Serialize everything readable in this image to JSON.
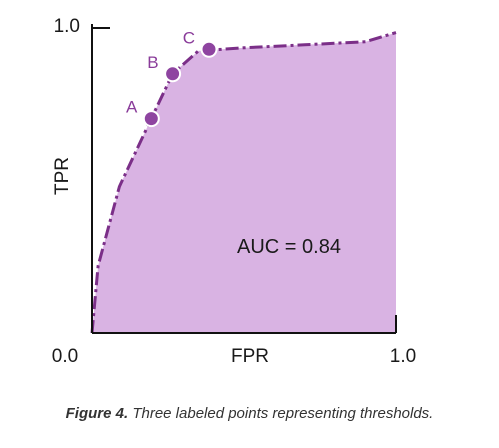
{
  "chart_data": {
    "type": "area",
    "xlabel": "FPR",
    "ylabel": "TPR",
    "xlim": [
      0,
      1
    ],
    "ylim": [
      0,
      1
    ],
    "x_tick_labels": [
      "0.0",
      "1.0"
    ],
    "y_tick_labels": [
      "0.0",
      "1.0"
    ],
    "grid": false,
    "curve": {
      "x": [
        0.0,
        0.02,
        0.09,
        0.195,
        0.265,
        0.35,
        0.5,
        0.7,
        0.9,
        1.0
      ],
      "y": [
        0.0,
        0.22,
        0.48,
        0.703,
        0.85,
        0.925,
        0.935,
        0.945,
        0.955,
        0.985
      ]
    },
    "points": [
      {
        "label": "A",
        "x": 0.195,
        "y": 0.703
      },
      {
        "label": "B",
        "x": 0.265,
        "y": 0.85
      },
      {
        "label": "C",
        "x": 0.385,
        "y": 0.93
      }
    ],
    "annotation": "AUC = 0.84",
    "colors": {
      "fill": "#d9b3e3",
      "line": "#7b2f88",
      "point": "#8e44a0",
      "axis": "#111111"
    }
  },
  "caption": {
    "lead": "Figure 4.",
    "text": " Three labeled points representing thresholds."
  }
}
